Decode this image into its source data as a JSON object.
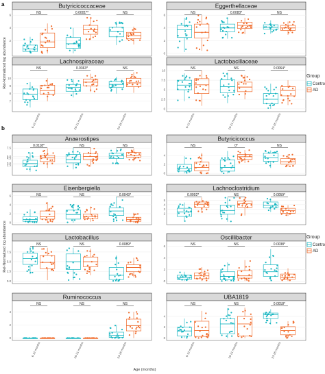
{
  "chart_data": {
    "type": "box",
    "colors": {
      "Control": "#17b6c1",
      "AD": "#f06b2b"
    },
    "legend": {
      "title": "Group",
      "items": [
        "Control",
        "AD"
      ],
      "placement": "right"
    },
    "x_categories": [
      "6-12 months",
      "18-21 months",
      "23-26 months"
    ],
    "section_a": {
      "letter": "a",
      "ylabel": "Rel-Normalized log abundance",
      "panels": [
        {
          "title": "Butyricicoccaceae",
          "ymin": 0,
          "ymax": 6,
          "ticks": [
            2,
            4,
            6
          ],
          "sig": [
            "NS",
            "0.0001**",
            "NS"
          ],
          "boxes": [
            {
              "q1": 0.3,
              "med": 0.7,
              "q3": 1.3,
              "lo": 0,
              "hi": 2.6
            },
            {
              "q1": 0.9,
              "med": 1.8,
              "q3": 3.2,
              "lo": 0,
              "hi": 4.7
            },
            {
              "q1": 0.8,
              "med": 1.5,
              "q3": 2.5,
              "lo": 0,
              "hi": 4.0
            },
            {
              "q1": 3.0,
              "med": 3.7,
              "q3": 4.4,
              "lo": 2.2,
              "hi": 5.6
            },
            {
              "q1": 2.6,
              "med": 3.5,
              "q3": 4.1,
              "lo": 1.3,
              "hi": 5.0
            },
            {
              "q1": 2.3,
              "med": 2.8,
              "q3": 3.3,
              "lo": 1.4,
              "hi": 4.2
            }
          ]
        },
        {
          "title": "Eggerthellaceae",
          "ymin": 0,
          "ymax": 6,
          "ticks": [
            0,
            2,
            4,
            6
          ],
          "sig": [
            "NS",
            "0.0083*",
            "NS"
          ],
          "boxes": [
            {
              "q1": 2.5,
              "med": 3.7,
              "q3": 4.4,
              "lo": 0.2,
              "hi": 5.6
            },
            {
              "q1": 2.4,
              "med": 3.3,
              "q3": 4.6,
              "lo": 0.4,
              "hi": 6.0
            },
            {
              "q1": 3.4,
              "med": 4.0,
              "q3": 4.6,
              "lo": 2.3,
              "hi": 5.6
            },
            {
              "q1": 3.9,
              "med": 4.4,
              "q3": 4.9,
              "lo": 3.0,
              "hi": 5.6
            },
            {
              "q1": 3.8,
              "med": 4.1,
              "q3": 4.5,
              "lo": 3.1,
              "hi": 5.2
            },
            {
              "q1": 3.6,
              "med": 4.0,
              "q3": 4.4,
              "lo": 2.9,
              "hi": 5.0
            }
          ]
        },
        {
          "title": "Lachnospiraceae",
          "ymin": 6,
          "ymax": 11,
          "ticks": [
            7,
            8,
            9,
            10
          ],
          "sig": [
            "NS",
            "0.0363*",
            "NS"
          ],
          "boxes": [
            {
              "q1": 7.2,
              "med": 7.9,
              "q3": 8.6,
              "lo": 6.2,
              "hi": 9.5
            },
            {
              "q1": 7.9,
              "med": 8.4,
              "q3": 9.1,
              "lo": 7.0,
              "hi": 10.0
            },
            {
              "q1": 8.3,
              "med": 8.8,
              "q3": 9.2,
              "lo": 7.5,
              "hi": 9.9
            },
            {
              "q1": 9.0,
              "med": 9.5,
              "q3": 9.9,
              "lo": 8.2,
              "hi": 10.6
            },
            {
              "q1": 8.8,
              "med": 9.2,
              "q3": 9.6,
              "lo": 8.0,
              "hi": 10.2
            },
            {
              "q1": 8.9,
              "med": 9.4,
              "q3": 10.0,
              "lo": 8.1,
              "hi": 10.8
            }
          ]
        },
        {
          "title": "Lactobacillaceae",
          "ymin": 0,
          "ymax": 10,
          "ticks": [
            0,
            2.5,
            5,
            7.5,
            10
          ],
          "sig": [
            "NS",
            "NS",
            "0.0064*"
          ],
          "boxes": [
            {
              "q1": 5.0,
              "med": 6.2,
              "q3": 7.5,
              "lo": 2.0,
              "hi": 9.3
            },
            {
              "q1": 4.0,
              "med": 6.3,
              "q3": 7.9,
              "lo": 0.8,
              "hi": 10.0
            },
            {
              "q1": 4.2,
              "med": 5.8,
              "q3": 7.6,
              "lo": 1.5,
              "hi": 9.5
            },
            {
              "q1": 4.5,
              "med": 5.7,
              "q3": 7.0,
              "lo": 2.5,
              "hi": 8.9
            },
            {
              "q1": 1.3,
              "med": 2.5,
              "q3": 4.0,
              "lo": 0,
              "hi": 6.6
            },
            {
              "q1": 3.4,
              "med": 4.8,
              "q3": 5.8,
              "lo": 1.0,
              "hi": 7.5
            }
          ]
        }
      ]
    },
    "section_b": {
      "letter": "b",
      "ylabel": "Rel-Normalized log abundance",
      "xlabel": "Age (months)",
      "panels": [
        {
          "title": "Anaerostipes",
          "ymin": 0,
          "ymax": 8,
          "ticks": [
            2.5,
            3,
            4.5,
            5,
            7.5
          ],
          "tick_labels": [
            "2.5",
            "3.0",
            "4.5",
            "5.0",
            "7.5"
          ],
          "sig": [
            "0.0118*",
            "NS",
            "NS"
          ],
          "boxes": [
            {
              "q1": 2.0,
              "med": 2.9,
              "q3": 3.9,
              "lo": 0.5,
              "hi": 6.2
            },
            {
              "q1": 3.5,
              "med": 4.6,
              "q3": 5.4,
              "lo": 1.6,
              "hi": 7.4
            },
            {
              "q1": 3.1,
              "med": 4.1,
              "q3": 5.6,
              "lo": 1.2,
              "hi": 7.6
            },
            {
              "q1": 4.1,
              "med": 5.0,
              "q3": 5.9,
              "lo": 2.0,
              "hi": 7.6
            },
            {
              "q1": 4.4,
              "med": 5.2,
              "q3": 6.0,
              "lo": 2.9,
              "hi": 7.4
            },
            {
              "q1": 4.8,
              "med": 5.4,
              "q3": 6.2,
              "lo": 3.6,
              "hi": 7.4
            }
          ]
        },
        {
          "title": "Butyricicoccus",
          "ymin": 0,
          "ymax": 6,
          "ticks": [
            0,
            2,
            4
          ],
          "sig": [
            "NS",
            "0*",
            "NS"
          ],
          "boxes": [
            {
              "q1": 0.5,
              "med": 1.1,
              "q3": 2.0,
              "lo": 0,
              "hi": 3.8
            },
            {
              "q1": 0.6,
              "med": 1.3,
              "q3": 2.5,
              "lo": 0,
              "hi": 4.6
            },
            {
              "q1": 0.5,
              "med": 1.3,
              "q3": 3.0,
              "lo": 0,
              "hi": 5.0
            },
            {
              "q1": 3.1,
              "med": 3.7,
              "q3": 4.2,
              "lo": 2.3,
              "hi": 5.2
            },
            {
              "q1": 2.7,
              "med": 3.5,
              "q3": 4.5,
              "lo": 1.2,
              "hi": 5.1
            },
            {
              "q1": 2.1,
              "med": 2.6,
              "q3": 3.3,
              "lo": 1.5,
              "hi": 4.2
            }
          ]
        },
        {
          "title": "Eisenbergiella",
          "ymin": 0,
          "ymax": 6,
          "ticks": [
            0,
            2,
            4,
            6
          ],
          "sig": [
            "NS",
            "NS",
            "0.0043*"
          ],
          "boxes": [
            {
              "q1": 0.3,
              "med": 0.7,
              "q3": 1.3,
              "lo": 0,
              "hi": 3.0
            },
            {
              "q1": 0.8,
              "med": 1.3,
              "q3": 2.6,
              "lo": 0,
              "hi": 4.6
            },
            {
              "q1": 0.8,
              "med": 1.8,
              "q3": 2.8,
              "lo": 0,
              "hi": 4.0
            },
            {
              "q1": 0.9,
              "med": 1.4,
              "q3": 1.9,
              "lo": 0.2,
              "hi": 3.6
            },
            {
              "q1": 1.6,
              "med": 2.6,
              "q3": 3.3,
              "lo": 0.3,
              "hi": 5.8
            },
            {
              "q1": 0.3,
              "med": 0.7,
              "q3": 1.2,
              "lo": 0,
              "hi": 2.2
            }
          ]
        },
        {
          "title": "Lachnoclostridium",
          "ymin": 0,
          "ymax": 6,
          "ticks": [
            2,
            3,
            4,
            5
          ],
          "sig": [
            "0.0092*",
            "NS",
            "0.0059*"
          ],
          "boxes": [
            {
              "q1": 1.4,
              "med": 2.4,
              "q3": 3.2,
              "lo": 0.3,
              "hi": 4.5
            },
            {
              "q1": 3.4,
              "med": 4.1,
              "q3": 4.6,
              "lo": 2.2,
              "hi": 5.6
            },
            {
              "q1": 1.9,
              "med": 2.7,
              "q3": 3.9,
              "lo": 0.2,
              "hi": 5.6
            },
            {
              "q1": 3.4,
              "med": 4.2,
              "q3": 4.8,
              "lo": 1.6,
              "hi": 5.7
            },
            {
              "q1": 3.3,
              "med": 3.9,
              "q3": 4.6,
              "lo": 2.4,
              "hi": 5.4
            },
            {
              "q1": 2.1,
              "med": 2.7,
              "q3": 3.2,
              "lo": 1.5,
              "hi": 3.9
            }
          ]
        },
        {
          "title": "Lactobacillus",
          "ymin": 0,
          "ymax": 9,
          "ticks": [
            0,
            2.5,
            5,
            7.5
          ],
          "tick_labels": [
            "0.0",
            "2.5",
            "5.0",
            "7.5"
          ],
          "sig": [
            "NS",
            "NS",
            "0.0089*"
          ],
          "boxes": [
            {
              "q1": 4.3,
              "med": 5.8,
              "q3": 7.2,
              "lo": 1.8,
              "hi": 8.8
            },
            {
              "q1": 3.2,
              "med": 4.8,
              "q3": 6.6,
              "lo": 0.2,
              "hi": 8.6
            },
            {
              "q1": 3.0,
              "med": 5.0,
              "q3": 7.0,
              "lo": 0.2,
              "hi": 8.6
            },
            {
              "q1": 3.7,
              "med": 5.0,
              "q3": 6.2,
              "lo": 1.5,
              "hi": 8.4
            },
            {
              "q1": 0.4,
              "med": 1.5,
              "q3": 3.5,
              "lo": 0,
              "hi": 6.6
            },
            {
              "q1": 2.4,
              "med": 3.5,
              "q3": 4.2,
              "lo": 1.0,
              "hi": 6.0
            }
          ]
        },
        {
          "title": "Oscillibacter",
          "ymin": 0,
          "ymax": 6,
          "ticks": [
            0,
            2,
            4,
            6
          ],
          "sig": [
            "NS",
            "NS",
            "0.0038*"
          ],
          "boxes": [
            {
              "q1": 0.3,
              "med": 0.6,
              "q3": 1.0,
              "lo": 0,
              "hi": 1.6
            },
            {
              "q1": 0.4,
              "med": 0.9,
              "q3": 1.4,
              "lo": 0,
              "hi": 2.4
            },
            {
              "q1": 0.2,
              "med": 0.8,
              "q3": 1.6,
              "lo": 0,
              "hi": 3.2
            },
            {
              "q1": 0.5,
              "med": 0.9,
              "q3": 1.8,
              "lo": 0,
              "hi": 3.6
            },
            {
              "q1": 0.8,
              "med": 1.6,
              "q3": 2.8,
              "lo": 0,
              "hi": 5.5
            },
            {
              "q1": 0.3,
              "med": 0.6,
              "q3": 1.2,
              "lo": 0,
              "hi": 2.2
            }
          ]
        },
        {
          "title": "Ruminococcus",
          "ymin": 0,
          "ymax": 5,
          "ticks": [
            0,
            2,
            4
          ],
          "sig": [
            "NS",
            "NS",
            "NS"
          ],
          "boxes": [
            {
              "q1": 0,
              "med": 0,
              "q3": 0,
              "lo": 0,
              "hi": 0
            },
            {
              "q1": 0,
              "med": 0,
              "q3": 0,
              "lo": 0,
              "hi": 0
            },
            {
              "q1": 0,
              "med": 0,
              "q3": 0,
              "lo": 0,
              "hi": 0
            },
            {
              "q1": 0,
              "med": 0,
              "q3": 0,
              "lo": 0,
              "hi": 0
            },
            {
              "q1": 0.1,
              "med": 0.4,
              "q3": 0.9,
              "lo": 0,
              "hi": 2.0
            },
            {
              "q1": 1.1,
              "med": 1.9,
              "q3": 2.9,
              "lo": 0,
              "hi": 4.0
            }
          ]
        },
        {
          "title": "UBA1819",
          "ymin": 0,
          "ymax": 6,
          "ticks": [
            0,
            2,
            4
          ],
          "sig": [
            "NS",
            "NS",
            "0.0018*"
          ],
          "boxes": [
            {
              "q1": 0.4,
              "med": 1.3,
              "q3": 2.0,
              "lo": 0,
              "hi": 3.6
            },
            {
              "q1": 0.3,
              "med": 1.4,
              "q3": 3.1,
              "lo": 0,
              "hi": 5.0
            },
            {
              "q1": 0.8,
              "med": 2.6,
              "q3": 3.6,
              "lo": 0,
              "hi": 5.5
            },
            {
              "q1": 0.4,
              "med": 2.6,
              "q3": 4.0,
              "lo": 0,
              "hi": 5.6
            },
            {
              "q1": 3.6,
              "med": 4.3,
              "q3": 4.6,
              "lo": 2.5,
              "hi": 5.3
            },
            {
              "q1": 0.6,
              "med": 1.4,
              "q3": 2.1,
              "lo": 0,
              "hi": 3.1
            }
          ]
        }
      ]
    }
  }
}
